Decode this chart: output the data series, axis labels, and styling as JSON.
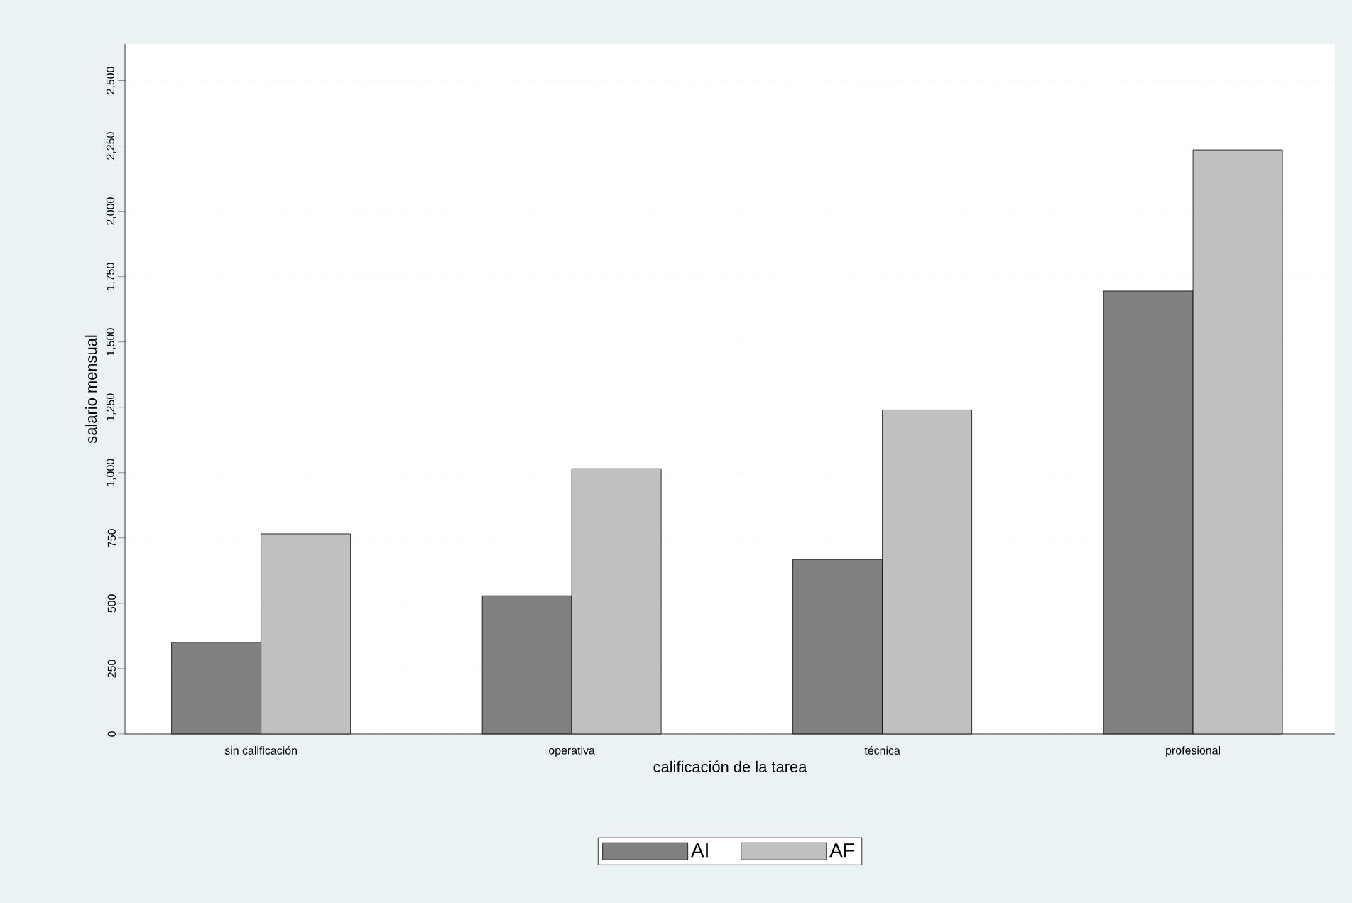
{
  "chart_data": {
    "type": "bar",
    "xlabel": "calificación de la tarea",
    "ylabel": "salario mensual",
    "categories": [
      "sin calificación",
      "operativa",
      "técnica",
      "profesional"
    ],
    "series": [
      {
        "name": "AI",
        "color": "#808080",
        "values": [
          351,
          529,
          668,
          1695
        ]
      },
      {
        "name": "AF",
        "color": "#c0c0c0",
        "values": [
          766,
          1015,
          1240,
          2235
        ]
      }
    ],
    "ylim": [
      0,
      2640
    ],
    "yticks": [
      0,
      250,
      500,
      750,
      {
        "value": 1000,
        "label": "1,000"
      },
      {
        "value": 1250,
        "label": "1,250"
      },
      {
        "value": 1500,
        "label": "1,500"
      },
      {
        "value": 1750,
        "label": "1,750"
      },
      {
        "value": 2000,
        "label": "2,000"
      },
      {
        "value": 2250,
        "label": "2,250"
      },
      {
        "value": 2500,
        "label": "2,500"
      }
    ],
    "grid": "y",
    "legend": "bottom"
  }
}
